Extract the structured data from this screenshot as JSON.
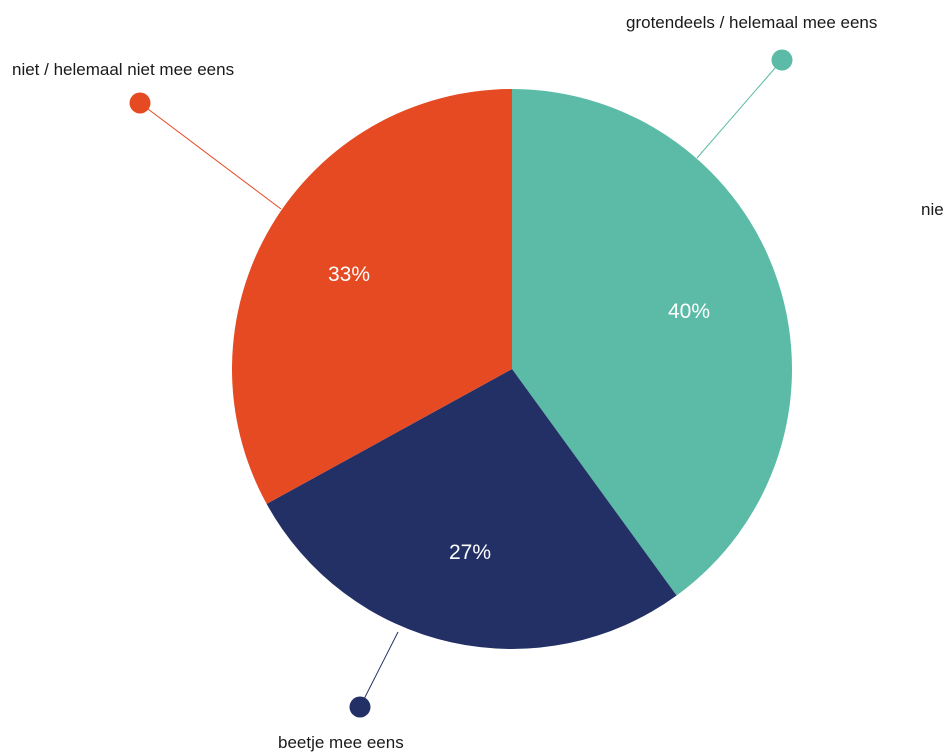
{
  "chart_data": {
    "type": "pie",
    "title": "",
    "slices": [
      {
        "label": "grotendeels / helemaal mee eens",
        "value": 40,
        "value_label": "40%",
        "color": "#5bbba6"
      },
      {
        "label": "beetje mee eens",
        "value": 27,
        "value_label": "27%",
        "color": "#223066"
      },
      {
        "label": "niet / helemaal niet mee eens",
        "value": 33,
        "value_label": "33%",
        "color": "#e64a23"
      },
      {
        "label": "nie",
        "value": 0,
        "value_label": "",
        "color": ""
      }
    ],
    "start_angle": "12 o'clock",
    "direction": "clockwise",
    "legend": "none"
  }
}
